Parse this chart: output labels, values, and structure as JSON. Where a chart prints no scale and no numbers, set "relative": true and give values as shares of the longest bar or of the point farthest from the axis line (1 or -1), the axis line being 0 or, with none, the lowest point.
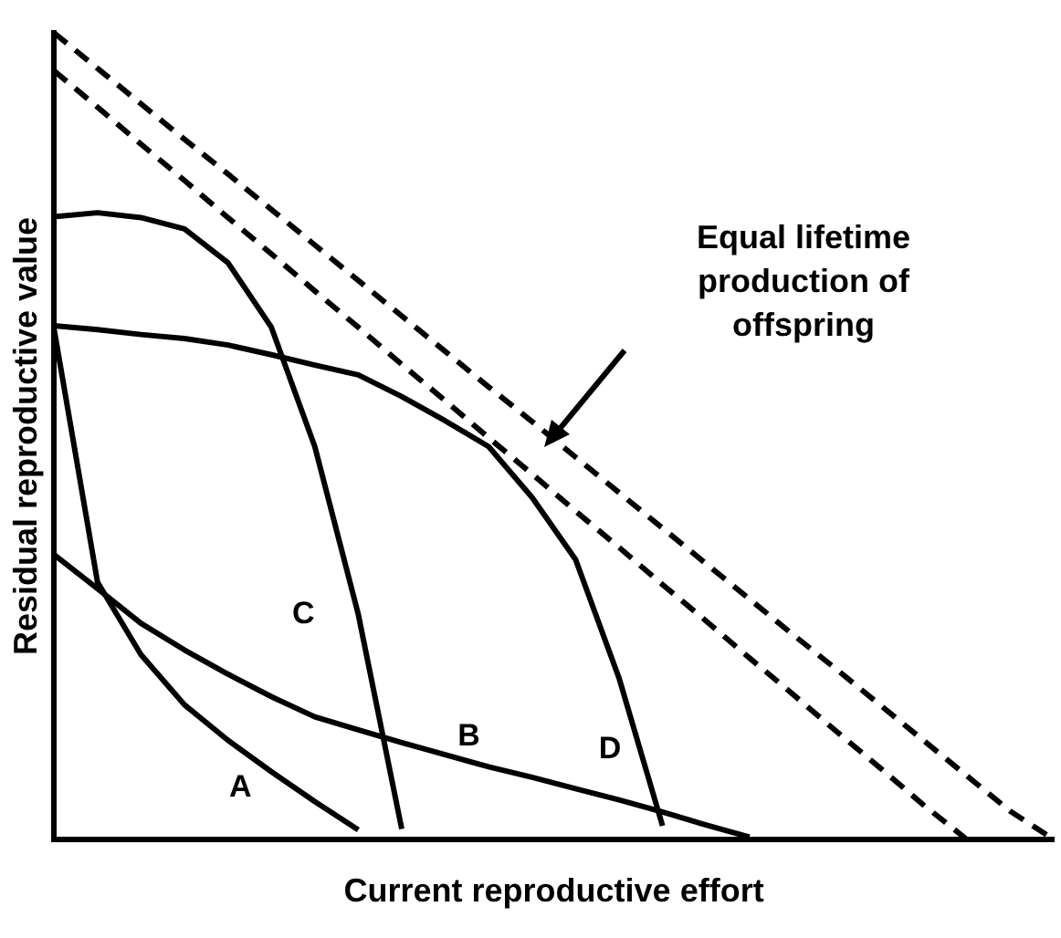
{
  "chart_data": {
    "type": "line",
    "relative": true,
    "xlabel": "Current reproductive effort",
    "ylabel": "Residual reproductive value",
    "annotations": [
      "Equal lifetime production of offspring"
    ],
    "marker": "none",
    "grid": false,
    "legend": false,
    "categories": [
      null,
      null,
      null,
      null,
      null,
      null,
      null,
      null,
      null,
      null,
      null,
      null,
      null,
      null,
      null,
      null,
      null,
      null,
      null,
      null,
      null,
      null,
      null,
      null
    ],
    "series": [
      {
        "name": "A",
        "color": "#000000",
        "values": [
          0.633,
          0.319,
          0.229,
          0.167,
          0.123,
          0.084,
          0.047,
          0.012,
          null,
          null,
          null,
          null,
          null,
          null,
          null,
          null,
          null,
          null,
          null,
          null,
          null,
          null,
          null,
          null
        ]
      },
      {
        "name": "B",
        "color": "#000000",
        "values": [
          0.353,
          0.311,
          0.268,
          0.235,
          0.205,
          0.177,
          0.152,
          0.136,
          0.12,
          0.105,
          0.09,
          0.077,
          0.063,
          0.049,
          0.034,
          0.018,
          0.003,
          null,
          null,
          null,
          null,
          null,
          null,
          null
        ]
      },
      {
        "name": "C",
        "color": "#000000",
        "values": [
          0.772,
          0.777,
          0.771,
          0.757,
          0.715,
          0.635,
          0.487,
          0.279,
          0.013,
          null,
          null,
          null,
          null,
          null,
          null,
          null,
          null,
          null,
          null,
          null,
          null,
          null,
          null,
          null
        ]
      },
      {
        "name": "D",
        "color": "#000000",
        "values": [
          0.637,
          0.632,
          0.626,
          0.621,
          0.613,
          0.601,
          0.588,
          0.576,
          0.549,
          0.519,
          0.487,
          0.424,
          0.347,
          0.2,
          0.017,
          null,
          null,
          null,
          null,
          null,
          null,
          null,
          null,
          null
        ]
      },
      {
        "color": "#000000",
        "line_style": "dashed",
        "values": [
          1,
          0.956,
          0.912,
          0.868,
          0.825,
          0.781,
          0.737,
          0.693,
          0.649,
          0.605,
          0.561,
          0.518,
          0.474,
          0.43,
          0.386,
          0.342,
          0.298,
          0.254,
          0.211,
          0.167,
          0.123,
          0.079,
          0.035,
          0
        ]
      },
      {
        "color": "#000000",
        "line_style": "dashed",
        "values": [
          0.953,
          0.908,
          0.862,
          0.817,
          0.771,
          0.726,
          0.68,
          0.635,
          0.589,
          0.544,
          0.498,
          0.453,
          0.407,
          0.362,
          0.316,
          0.271,
          0.225,
          0.18,
          0.134,
          0.089,
          0.043,
          0,
          null,
          null
        ]
      }
    ]
  }
}
